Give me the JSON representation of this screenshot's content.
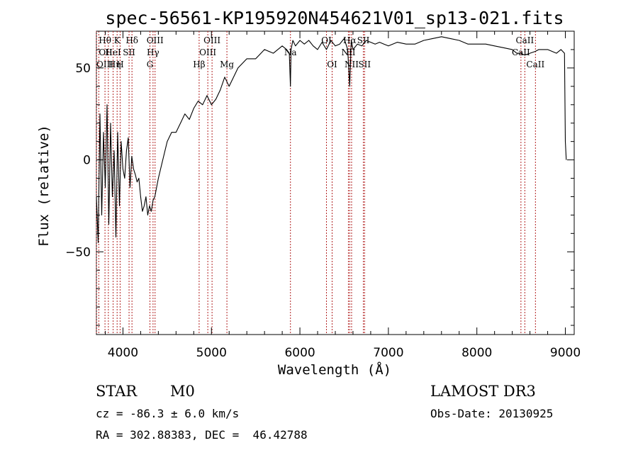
{
  "chart_data": {
    "type": "line",
    "title": "spec-56561-KP195920N454621V01_sp13-021.fits",
    "xlabel": "Wavelength (Å)",
    "ylabel": "Flux (relative)",
    "xlim": [
      3700,
      9100
    ],
    "ylim": [
      -95,
      70
    ],
    "x_ticks": [
      4000,
      5000,
      6000,
      7000,
      8000,
      9000
    ],
    "x_tick_labels": [
      "4000",
      "5000",
      "6000",
      "7000",
      "8000",
      "9000"
    ],
    "y_ticks": [
      -50,
      0,
      50
    ],
    "y_tick_labels": [
      "−50",
      "0",
      "50"
    ],
    "line_color": "#000000",
    "marker_color": "#b22222",
    "series": [
      {
        "x": [
          3700,
          3720,
          3740,
          3760,
          3780,
          3800,
          3820,
          3840,
          3860,
          3880,
          3900,
          3920,
          3940,
          3960,
          3980,
          4000,
          4020,
          4040,
          4060,
          4080,
          4100,
          4120,
          4140,
          4160,
          4180,
          4200,
          4220,
          4240,
          4260,
          4280,
          4300,
          4320,
          4340,
          4360,
          4380,
          4400,
          4450,
          4500,
          4550,
          4600,
          4650,
          4700,
          4750,
          4800,
          4850,
          4900,
          4950,
          5000,
          5050,
          5100,
          5150,
          5200,
          5250,
          5300,
          5400,
          5500,
          5600,
          5700,
          5800,
          5850,
          5880,
          5893,
          5900,
          5920,
          5950,
          6000,
          6050,
          6100,
          6150,
          6200,
          6250,
          6300,
          6350,
          6400,
          6450,
          6500,
          6540,
          6563,
          6580,
          6600,
          6650,
          6700,
          6750,
          6800,
          6850,
          6900,
          6950,
          7000,
          7100,
          7200,
          7300,
          7400,
          7500,
          7600,
          7700,
          7800,
          7900,
          8000,
          8100,
          8200,
          8300,
          8400,
          8450,
          8500,
          8540,
          8600,
          8660,
          8700,
          8800,
          8900,
          8950,
          8990,
          9000,
          9010
        ],
        "y": [
          -20,
          -45,
          25,
          -30,
          15,
          -15,
          30,
          -35,
          20,
          -20,
          5,
          -42,
          15,
          -25,
          10,
          -5,
          -10,
          5,
          12,
          -15,
          2,
          -5,
          -8,
          -12,
          -10,
          -20,
          -28,
          -25,
          -20,
          -30,
          -25,
          -28,
          -22,
          -20,
          -15,
          -10,
          0,
          10,
          15,
          15,
          20,
          25,
          22,
          28,
          32,
          30,
          35,
          30,
          33,
          38,
          45,
          40,
          45,
          50,
          55,
          55,
          60,
          58,
          62,
          60,
          58,
          40,
          60,
          65,
          62,
          65,
          63,
          65,
          62,
          60,
          64,
          60,
          65,
          62,
          63,
          66,
          60,
          40,
          65,
          60,
          63,
          62,
          65,
          64,
          63,
          64,
          63,
          62,
          64,
          63,
          63,
          65,
          66,
          67,
          66,
          65,
          63,
          63,
          63,
          62,
          61,
          60,
          58,
          58,
          57,
          58,
          59,
          60,
          60,
          58,
          60,
          58,
          10,
          0
        ]
      }
    ],
    "line_markers": [
      {
        "label": "Hθ",
        "x": 3797,
        "row": 1,
        "anchor": "middle"
      },
      {
        "label": "OII",
        "x": 3727,
        "row": 2,
        "anchor": "start"
      },
      {
        "label": "OIII",
        "x": 3700,
        "row": 3,
        "anchor": "start"
      },
      {
        "label": "Hη",
        "x": 3835,
        "row": 3,
        "anchor": "start"
      },
      {
        "label": "K",
        "x": 3934,
        "row": 1,
        "anchor": "middle"
      },
      {
        "label": "HeI",
        "x": 3889,
        "row": 2,
        "anchor": "middle"
      },
      {
        "label": "H",
        "x": 3968,
        "row": 3,
        "anchor": "middle"
      },
      {
        "label": "Hδ",
        "x": 4102,
        "row": 1,
        "anchor": "middle"
      },
      {
        "label": "SII",
        "x": 4069,
        "row": 2,
        "anchor": "middle"
      },
      {
        "label": "OIII",
        "x": 4363,
        "row": 1,
        "anchor": "middle"
      },
      {
        "label": "Hγ",
        "x": 4340,
        "row": 2,
        "anchor": "middle"
      },
      {
        "label": "G",
        "x": 4305,
        "row": 3,
        "anchor": "middle"
      },
      {
        "label": "Hβ",
        "x": 4861,
        "row": 3,
        "anchor": "middle"
      },
      {
        "label": "OIII",
        "x": 5007,
        "row": 1,
        "anchor": "middle"
      },
      {
        "label": "OIII",
        "x": 4959,
        "row": 2,
        "anchor": "middle"
      },
      {
        "label": "Mg",
        "x": 5175,
        "row": 3,
        "anchor": "middle"
      },
      {
        "label": "Na",
        "x": 5893,
        "row": 2,
        "anchor": "middle"
      },
      {
        "label": "OI",
        "x": 6300,
        "row": 1,
        "anchor": "middle"
      },
      {
        "label": "OI",
        "x": 6364,
        "row": 3,
        "anchor": "middle"
      },
      {
        "label": "Hα",
        "x": 6563,
        "row": 1,
        "anchor": "middle"
      },
      {
        "label": "NII",
        "x": 6548,
        "row": 2,
        "anchor": "middle"
      },
      {
        "label": "NII",
        "x": 6584,
        "row": 3,
        "anchor": "middle"
      },
      {
        "label": "SII",
        "x": 6717,
        "row": 1,
        "anchor": "middle"
      },
      {
        "label": "SII",
        "x": 6731,
        "row": 3,
        "anchor": "middle"
      },
      {
        "label": "CaII",
        "x": 8542,
        "row": 1,
        "anchor": "middle"
      },
      {
        "label": "CaII",
        "x": 8498,
        "row": 2,
        "anchor": "middle"
      },
      {
        "label": "CaII",
        "x": 8662,
        "row": 3,
        "anchor": "middle"
      }
    ]
  },
  "info": {
    "class_label": "STAR",
    "subclass_label": "M0",
    "cz_line": "cz = -86.3 ± 6.0 km/s",
    "coords_line": "RA = 302.88383, DEC =  46.42788",
    "survey_label": "LAMOST DR3",
    "obs_date_line": "Obs-Date: 20130925"
  }
}
